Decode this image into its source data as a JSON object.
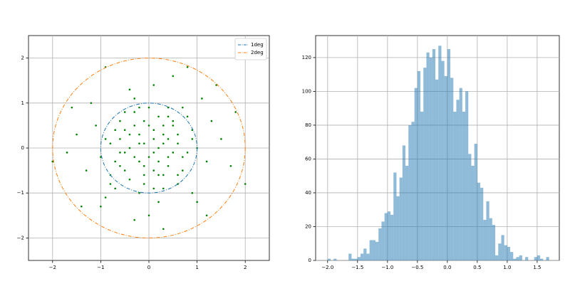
{
  "chart_data": [
    {
      "type": "scatter",
      "xlim": [
        -2.5,
        2.5
      ],
      "ylim": [
        -2.5,
        2.5
      ],
      "xticks": [
        {
          "value": -2,
          "label": "−2"
        },
        {
          "value": -1,
          "label": "−1"
        },
        0,
        1,
        2
      ],
      "yticks": [
        {
          "value": -2,
          "label": "−2"
        },
        {
          "value": -1,
          "label": "−1"
        },
        0,
        1,
        2
      ],
      "grid": true,
      "legend": "upper-right",
      "color": "green",
      "x": [
        0.1,
        -0.3,
        0.4,
        -0.1,
        0.6,
        -0.5,
        0.2,
        -0.7,
        0.3,
        -0.2,
        0.8,
        -0.4,
        0.0,
        0.5,
        -0.6,
        0.1,
        -0.9,
        0.7,
        -0.1,
        0.3,
        -0.3,
        0.9,
        -0.8,
        0.2,
        -0.5,
        0.4,
        -0.2,
        1.0,
        -1.0,
        0.6,
        -0.4,
        0.1,
        -0.6,
        0.5,
        -0.1,
        0.3,
        -0.7,
        0.8,
        -0.3,
        0.2,
        1.2,
        -1.1,
        0.4,
        -0.2,
        0.0,
        0.6,
        -0.5,
        0.3,
        -0.8,
        0.7,
        -0.4,
        1.3,
        -1.3,
        0.9,
        -0.9,
        0.1,
        0.0,
        1.5,
        -1.5,
        1.1,
        -1.2,
        1.0,
        -1.0,
        0.5,
        -0.3,
        1.7,
        -1.7,
        0.2,
        -0.1,
        0.4,
        -0.2,
        0.1,
        -0.4,
        0.3,
        -0.6,
        0.5,
        -0.3,
        0.2,
        0.7,
        -0.7,
        2.0,
        -2.0,
        1.4,
        -1.4,
        0.8,
        -0.9,
        1.2,
        0.3,
        -1.6,
        1.8,
        0.0,
        -0.5,
        0.6,
        -0.1,
        0.9,
        -0.8,
        0.4,
        -0.2,
        0.1,
        -0.6
      ],
      "y": [
        0.2,
        0.5,
        -0.2,
        -0.4,
        0.3,
        -0.1,
        0.7,
        0.4,
        -0.6,
        0.1,
        -0.1,
        -0.7,
        0.9,
        0.5,
        -0.4,
        -0.9,
        0.2,
        -0.5,
        0.6,
        0.1,
        -0.2,
        0.4,
        -0.6,
        -0.3,
        0.8,
        0.9,
        -1.0,
        0.0,
        -0.2,
        -0.8,
        0.3,
        0.4,
        0.6,
        -0.1,
        -0.6,
        0.5,
        -0.9,
        0.7,
        1.1,
        -1.2,
        -0.3,
        0.5,
        0.2,
        0.3,
        -0.2,
        0.1,
        -0.5,
        -0.9,
        0.1,
        0.9,
        1.3,
        0.6,
        -0.5,
        -1.0,
        -1.1,
        1.4,
        -1.5,
        0.2,
        0.3,
        1.1,
        1.0,
        -1.2,
        -1.3,
        1.6,
        -1.6,
        -0.4,
        -0.1,
        0.0,
        0.1,
        -0.4,
        -0.3,
        -0.1,
        0.0,
        0.3,
        0.2,
        0.6,
        0.8,
        -0.6,
        -0.2,
        -0.3,
        -0.8,
        -0.3,
        1.4,
        -1.3,
        1.8,
        1.8,
        -1.5,
        -1.8,
        0.9,
        0.8,
        0.5,
        0.4,
        -0.6,
        -0.8,
        0.2,
        -0.8,
        0.7,
        0.9,
        -0.5,
        -0.1
      ],
      "series": [
        {
          "name": "1deg",
          "color": "#1f77b4",
          "radius": 1
        },
        {
          "name": "2deg",
          "color": "#ff7f0e",
          "radius": 2
        }
      ]
    },
    {
      "type": "histogram",
      "xlim": [
        -2.2,
        1.87
      ],
      "ylim": [
        0,
        133
      ],
      "xticks": [
        {
          "value": -2,
          "label": "−2.0"
        },
        {
          "value": -1.5,
          "label": "−1.5"
        },
        {
          "value": -1,
          "label": "−1.0"
        },
        {
          "value": -0.5,
          "label": "−0.5"
        },
        {
          "value": 0,
          "label": "0.0"
        },
        0.5,
        {
          "value": 1,
          "label": "1.0"
        },
        1.5
      ],
      "yticks": [
        0,
        20,
        40,
        60,
        80,
        100,
        120
      ],
      "grid": true,
      "color": "#1f77b4",
      "alpha": 0.5,
      "bins": [
        -2.0,
        -1.95,
        -1.9,
        -1.85,
        -1.8,
        -1.75,
        -1.7,
        -1.65,
        -1.6,
        -1.55,
        -1.5,
        -1.45,
        -1.4,
        -1.35,
        -1.3,
        -1.25,
        -1.2,
        -1.15,
        -1.1,
        -1.05,
        -1.0,
        -0.95,
        -0.9,
        -0.85,
        -0.8,
        -0.75,
        -0.7,
        -0.65,
        -0.6,
        -0.55,
        -0.5,
        -0.45,
        -0.4,
        -0.35,
        -0.3,
        -0.25,
        -0.2,
        -0.15,
        -0.1,
        -0.05,
        0.0,
        0.05,
        0.1,
        0.15,
        0.2,
        0.25,
        0.3,
        0.35,
        0.4,
        0.45,
        0.5,
        0.55,
        0.6,
        0.65,
        0.7,
        0.75,
        0.8,
        0.85,
        0.9,
        0.95,
        1.0,
        1.05,
        1.1,
        1.15,
        1.2,
        1.25,
        1.3,
        1.35,
        1.4,
        1.45,
        1.5,
        1.55,
        1.6,
        1.65,
        1.7
      ],
      "values": [
        1,
        0,
        1,
        0,
        0,
        0,
        0,
        4,
        1,
        1,
        2,
        4,
        7,
        4,
        12,
        12,
        11,
        19,
        23,
        28,
        29,
        27,
        52,
        38,
        49,
        68,
        56,
        80,
        82,
        102,
        112,
        88,
        114,
        123,
        120,
        125,
        107,
        127,
        118,
        109,
        125,
        108,
        88,
        95,
        102,
        88,
        100,
        63,
        56,
        69,
        46,
        43,
        24,
        35,
        25,
        21,
        3,
        10,
        15,
        9,
        8,
        5,
        1,
        2,
        3,
        0,
        2,
        0,
        0,
        2,
        3,
        1,
        0,
        2
      ]
    }
  ]
}
